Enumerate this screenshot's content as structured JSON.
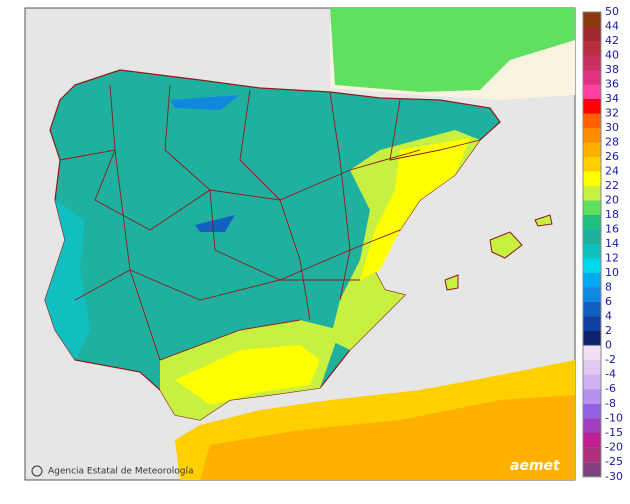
{
  "legend": {
    "upper_labels": [
      "50",
      "44",
      "42",
      "40",
      "38",
      "36",
      "34",
      "32",
      "30",
      "28",
      "26",
      "24",
      "22",
      "20",
      "18",
      "16",
      "14",
      "12",
      "10",
      "8",
      "6",
      "4",
      "2",
      "0"
    ],
    "upper_colors": [
      "#8b3a0f",
      "#a0282a",
      "#b83040",
      "#c83060",
      "#e03080",
      "#ff40a0",
      "#ff0000",
      "#ff6000",
      "#ff8c00",
      "#ffb000",
      "#ffd000",
      "#ffff00",
      "#c8f040",
      "#60e060",
      "#20c080",
      "#20b0a0",
      "#10c0c0",
      "#00d8e8",
      "#00a8f0",
      "#1088e0",
      "#1060c0",
      "#1040a0",
      "#102070"
    ],
    "lower_labels": [
      "-2",
      "-4",
      "-6",
      "-8",
      "-10",
      "-15",
      "-20",
      "-25",
      "-30"
    ],
    "lower_colors": [
      "#f0e0f4",
      "#e0c8f0",
      "#d0b0f0",
      "#b890f0",
      "#9060e0",
      "#a040c0",
      "#c02090",
      "#b03080",
      "#804080"
    ]
  },
  "credit": "Agencia Estatal de Meteorología",
  "logo": "aemet"
}
